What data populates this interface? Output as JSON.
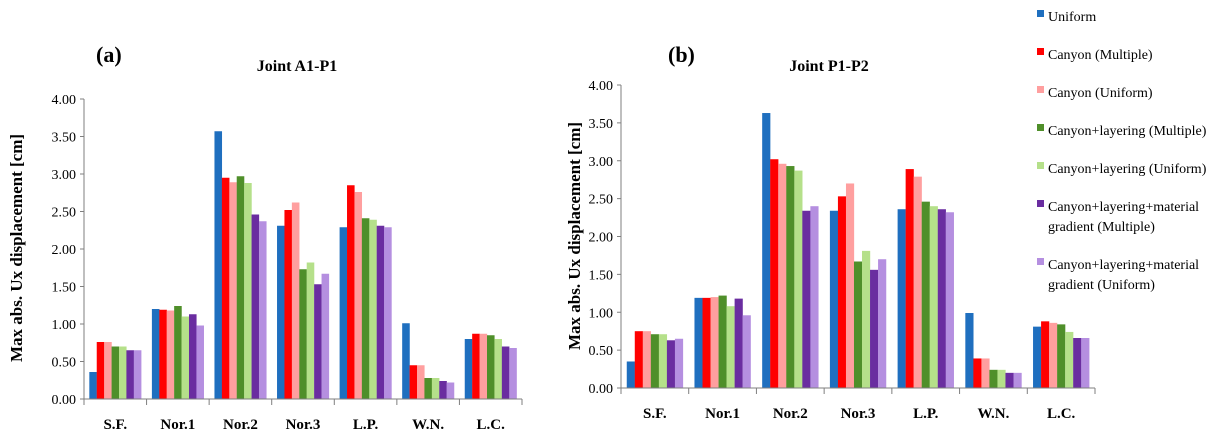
{
  "chart_data": [
    {
      "type": "bar",
      "panel": "(a)",
      "title": "Joint A1-P1",
      "xlabel": "",
      "ylabel": "Max abs. Ux displacement  [cm]",
      "ylim": [
        0,
        4
      ],
      "ytick_labels": [
        "0.00",
        "0.50",
        "1.00",
        "1.50",
        "2.00",
        "2.50",
        "3.00",
        "3.50",
        "4.00"
      ],
      "grid": false,
      "categories": [
        "S.F.",
        "Nor.1",
        "Nor.2",
        "Nor.3",
        "L.P.",
        "W.N.",
        "L.C."
      ],
      "series": [
        {
          "name": "Uniform",
          "color": "#1f6fbf",
          "values": [
            0.36,
            1.2,
            3.57,
            2.31,
            2.29,
            1.01,
            0.8
          ]
        },
        {
          "name": "Canyon (Multiple)",
          "color": "#ff0000",
          "values": [
            0.76,
            1.19,
            2.95,
            2.52,
            2.85,
            0.45,
            0.87
          ]
        },
        {
          "name": "Canyon (Uniform)",
          "color": "#ff9f9f",
          "values": [
            0.76,
            1.18,
            2.89,
            2.62,
            2.76,
            0.45,
            0.87
          ]
        },
        {
          "name": "Canyon+layering (Multiple)",
          "color": "#4f8f2a",
          "values": [
            0.7,
            1.24,
            2.97,
            1.73,
            2.41,
            0.28,
            0.85
          ]
        },
        {
          "name": "Canyon+layering (Uniform)",
          "color": "#b5e08a",
          "values": [
            0.7,
            1.1,
            2.88,
            1.82,
            2.39,
            0.28,
            0.8
          ]
        },
        {
          "name": "Canyon+layering+material gradient (Multiple)",
          "color": "#6a2da0",
          "values": [
            0.65,
            1.13,
            2.46,
            1.53,
            2.31,
            0.24,
            0.7
          ]
        },
        {
          "name": "Canyon+layering+material gradient (Uniform)",
          "color": "#b58fe0",
          "values": [
            0.65,
            0.98,
            2.37,
            1.67,
            2.29,
            0.22,
            0.68
          ]
        }
      ]
    },
    {
      "type": "bar",
      "panel": "(b)",
      "title": "Joint P1-P2",
      "xlabel": "",
      "ylabel": "Max abs. Ux displacement  [cm]",
      "ylim": [
        0,
        4
      ],
      "ytick_labels": [
        "0.00",
        "0.50",
        "1.00",
        "1.50",
        "2.00",
        "2.50",
        "3.00",
        "3.50",
        "4.00"
      ],
      "grid": false,
      "legend_position": "right",
      "categories": [
        "S.F.",
        "Nor.1",
        "Nor.2",
        "Nor.3",
        "L.P.",
        "W.N.",
        "L.C."
      ],
      "series": [
        {
          "name": "Uniform",
          "color": "#1f6fbf",
          "values": [
            0.35,
            1.19,
            3.63,
            2.34,
            2.36,
            0.99,
            0.81
          ]
        },
        {
          "name": "Canyon (Multiple)",
          "color": "#ff0000",
          "values": [
            0.75,
            1.19,
            3.02,
            2.53,
            2.89,
            0.39,
            0.88
          ]
        },
        {
          "name": "Canyon (Uniform)",
          "color": "#ff9f9f",
          "values": [
            0.75,
            1.2,
            2.96,
            2.7,
            2.79,
            0.39,
            0.86
          ]
        },
        {
          "name": "Canyon+layering (Multiple)",
          "color": "#4f8f2a",
          "values": [
            0.71,
            1.22,
            2.93,
            1.67,
            2.46,
            0.24,
            0.84
          ]
        },
        {
          "name": "Canyon+layering (Uniform)",
          "color": "#b5e08a",
          "values": [
            0.71,
            1.08,
            2.87,
            1.81,
            2.4,
            0.24,
            0.74
          ]
        },
        {
          "name": "Canyon+layering+material gradient (Multiple)",
          "color": "#6a2da0",
          "values": [
            0.63,
            1.18,
            2.34,
            1.56,
            2.36,
            0.2,
            0.66
          ]
        },
        {
          "name": "Canyon+layering+material gradient (Uniform)",
          "color": "#b58fe0",
          "values": [
            0.65,
            0.96,
            2.4,
            1.7,
            2.32,
            0.2,
            0.66
          ]
        }
      ]
    }
  ],
  "legend": {
    "items": [
      {
        "lines": [
          "Uniform"
        ],
        "color": "#1f6fbf"
      },
      {
        "lines": [
          "Canyon (Multiple)"
        ],
        "color": "#ff0000"
      },
      {
        "lines": [
          "Canyon (Uniform)"
        ],
        "color": "#ff9f9f"
      },
      {
        "lines": [
          "Canyon+layering (Multiple)"
        ],
        "color": "#4f8f2a"
      },
      {
        "lines": [
          "Canyon+layering (Uniform)"
        ],
        "color": "#b5e08a"
      },
      {
        "lines": [
          "Canyon+layering+material",
          "gradient (Multiple)"
        ],
        "color": "#6a2da0"
      },
      {
        "lines": [
          "Canyon+layering+material",
          "gradient (Uniform)"
        ],
        "color": "#b58fe0"
      }
    ]
  }
}
